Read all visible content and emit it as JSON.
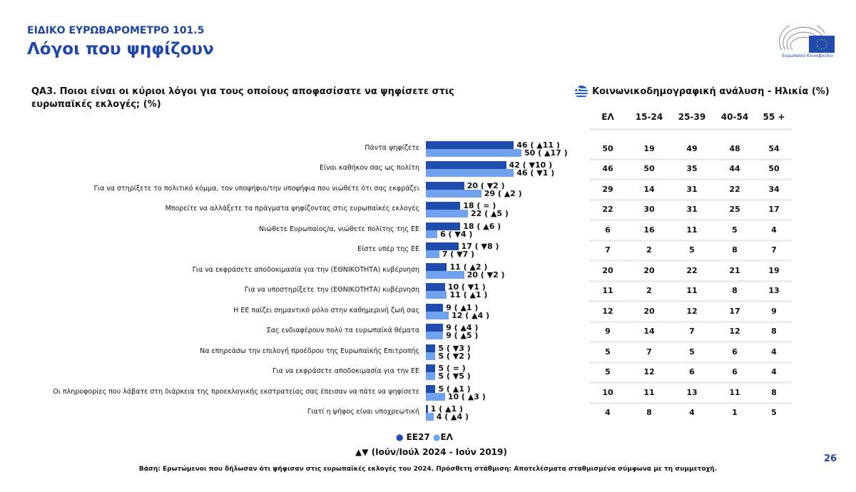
{
  "header": {
    "kicker": "ΕΙΔΙΚΟ ΕΥΡΩΒΑΡΟΜΕΤΡΟ 101.5",
    "title": "Λόγοι που ψηφίζουν",
    "logo_text": "Ευρωπαϊκό Κοινοβούλιο"
  },
  "question": "QA3. Ποιοι είναι οι κύριοι λόγοι για τους οποίους αποφασίσατε να ψηφίσετε στις ευρωπαϊκές εκλογές; (%)",
  "colors": {
    "eu27": "#1f4cad",
    "el": "#70a2ef",
    "accent": "#1e46a8"
  },
  "chart_data": {
    "type": "bar",
    "orientation": "horizontal",
    "categories": [
      "Πάντα ψηφίζετε",
      "Είναι καθήκον σας ως πολίτη",
      "Για να στηρίξετε το πολιτικό κόμμα, τον υποψήφιο/την υποψήφια που νιώθετε ότι σας εκφράζει",
      "Μπορείτε να αλλάξετε τα πράγματα ψηφίζοντας στις ευρωπαϊκές εκλογές",
      "Νιώθετε Ευρωπαίος/α, νιώθετε πολίτης της ΕΕ",
      "Είστε υπέρ της ΕΕ",
      "Για να εκφράσετε αποδοκιμασία για την (ΕΘΝΙΚΟΤΗΤΑ) κυβέρνηση",
      "Για να υποστηρίξετε την (ΕΘΝΙΚΟΤΗΤΑ) κυβέρνηση",
      "Η ΕΕ παίζει σημαντικό ρόλο στην καθημερινή ζωή σας",
      "Σας ενδιαφέρουν πολύ τα ευρωπαϊκά θέματα",
      "Να επηρεάσω την επιλογή προέδρου της Ευρωπαϊκής Επιτροπής",
      "Για να εκφράσετε αποδοκιμασία για την ΕΕ",
      "Οι πληροφορίες που λάβατε στη διάρκεια της προεκλογικής εκστρατείας σας έπεισαν να πάτε να ψηφίσετε",
      "Γιατί η ψήφος είναι υποχρεωτική"
    ],
    "series": [
      {
        "name": "ΕΕ27",
        "values": [
          46,
          42,
          20,
          18,
          18,
          17,
          11,
          10,
          9,
          9,
          5,
          5,
          5,
          1
        ],
        "labels": [
          "46 ( ▲11 )",
          "42 ( ▼10 )",
          "20 ( ▼2 )",
          "18 ( = )",
          "18 ( ▲6 )",
          "17 ( ▼8 )",
          "11 ( ▲2 )",
          "10 ( ▼1 )",
          "9 ( ▲1 )",
          "9 ( ▲4 )",
          "5 ( ▼3 )",
          "5 ( = )",
          "5 ( ▲1 )",
          "1 ( ▲1 )"
        ]
      },
      {
        "name": "ΕΛ",
        "values": [
          50,
          46,
          29,
          22,
          6,
          7,
          20,
          11,
          12,
          9,
          5,
          5,
          10,
          4
        ],
        "labels": [
          "50 ( ▲17 )",
          "46 ( ▼1 )",
          "29 ( ▲2 )",
          "22 ( ▲5 )",
          "6 ( ▼4 )",
          "7 ( ▼7 )",
          "20 ( ▼2 )",
          "11 ( ▲1 )",
          "12 ( ▲4 )",
          "9 ( ▲5 )",
          "5 ( ▼2 )",
          "5 ( ▼5 )",
          "10 ( ▲3 )",
          "4 ( ▲4 )"
        ]
      }
    ],
    "legend": "bottom"
  },
  "legend": {
    "eu27": "ΕΕ27",
    "el": "ΕΛ",
    "note": "▲▼ (Ιούν/Ιούλ 2024 - Ιούν 2019)"
  },
  "table": {
    "title": "Κοινωνικοδημογραφική ανάλυση - Ηλικία (%)",
    "headers": [
      "ΕΛ",
      "15-24",
      "25-39",
      "40-54",
      "55 +"
    ],
    "rows": [
      [
        "50",
        "19",
        "49",
        "48",
        "54"
      ],
      [
        "46",
        "50",
        "35",
        "44",
        "50"
      ],
      [
        "29",
        "14",
        "31",
        "22",
        "34"
      ],
      [
        "22",
        "30",
        "31",
        "25",
        "17"
      ],
      [
        "6",
        "16",
        "11",
        "5",
        "4"
      ],
      [
        "7",
        "2",
        "5",
        "8",
        "7"
      ],
      [
        "20",
        "20",
        "22",
        "21",
        "19"
      ],
      [
        "11",
        "2",
        "11",
        "8",
        "13"
      ],
      [
        "12",
        "20",
        "12",
        "17",
        "9"
      ],
      [
        "9",
        "14",
        "7",
        "12",
        "8"
      ],
      [
        "5",
        "7",
        "5",
        "6",
        "4"
      ],
      [
        "5",
        "12",
        "6",
        "6",
        "4"
      ],
      [
        "10",
        "11",
        "13",
        "11",
        "8"
      ],
      [
        "4",
        "8",
        "4",
        "1",
        "5"
      ]
    ]
  },
  "footer": {
    "base": "Βάση: Ερωτώμενοι που δήλωσαν ότι ψήφισαν στις ευρωπαϊκές εκλογές του 2024. Πρόσθετη στάθμιση: Αποτελέσματα σταθμισμένα σύμφωνα με τη συμμετοχή.",
    "page": "26"
  }
}
